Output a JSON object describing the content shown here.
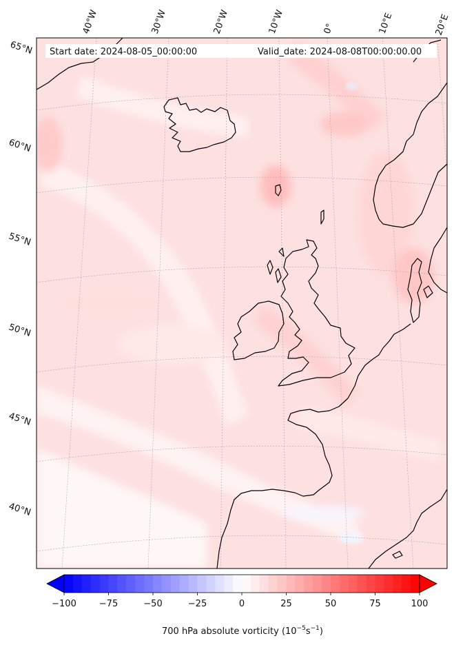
{
  "header": {
    "start_date": "Start date: 2024-08-05_00:00:00",
    "valid_date": "Valid_date: 2024-08-08T00:00:00.00"
  },
  "longitude_labels": [
    "40°W",
    "30°W",
    "20°W",
    "10°W",
    "0°",
    "10°E",
    "20°E"
  ],
  "latitude_labels": [
    "65°N",
    "60°N",
    "55°N",
    "50°N",
    "45°N",
    "40°N"
  ],
  "colorbar": {
    "label_main": "700 hPa absolute vorticity (10",
    "label_exp1": "−5",
    "label_mid": "s",
    "label_exp2": "−1",
    "label_end": ")",
    "ticks": [
      "−100",
      "−75",
      "−50",
      "−25",
      "0",
      "25",
      "50",
      "75",
      "100"
    ],
    "vmin": -100,
    "vmax": 100,
    "extend": "both",
    "colormap": "bwr",
    "colors": {
      "min": "#0000ff",
      "mid": "#ffffff",
      "max": "#ff0000"
    }
  },
  "map": {
    "projection": "Lambert conformal",
    "gridlines": "dotted",
    "coastline_color": "#000000"
  }
}
